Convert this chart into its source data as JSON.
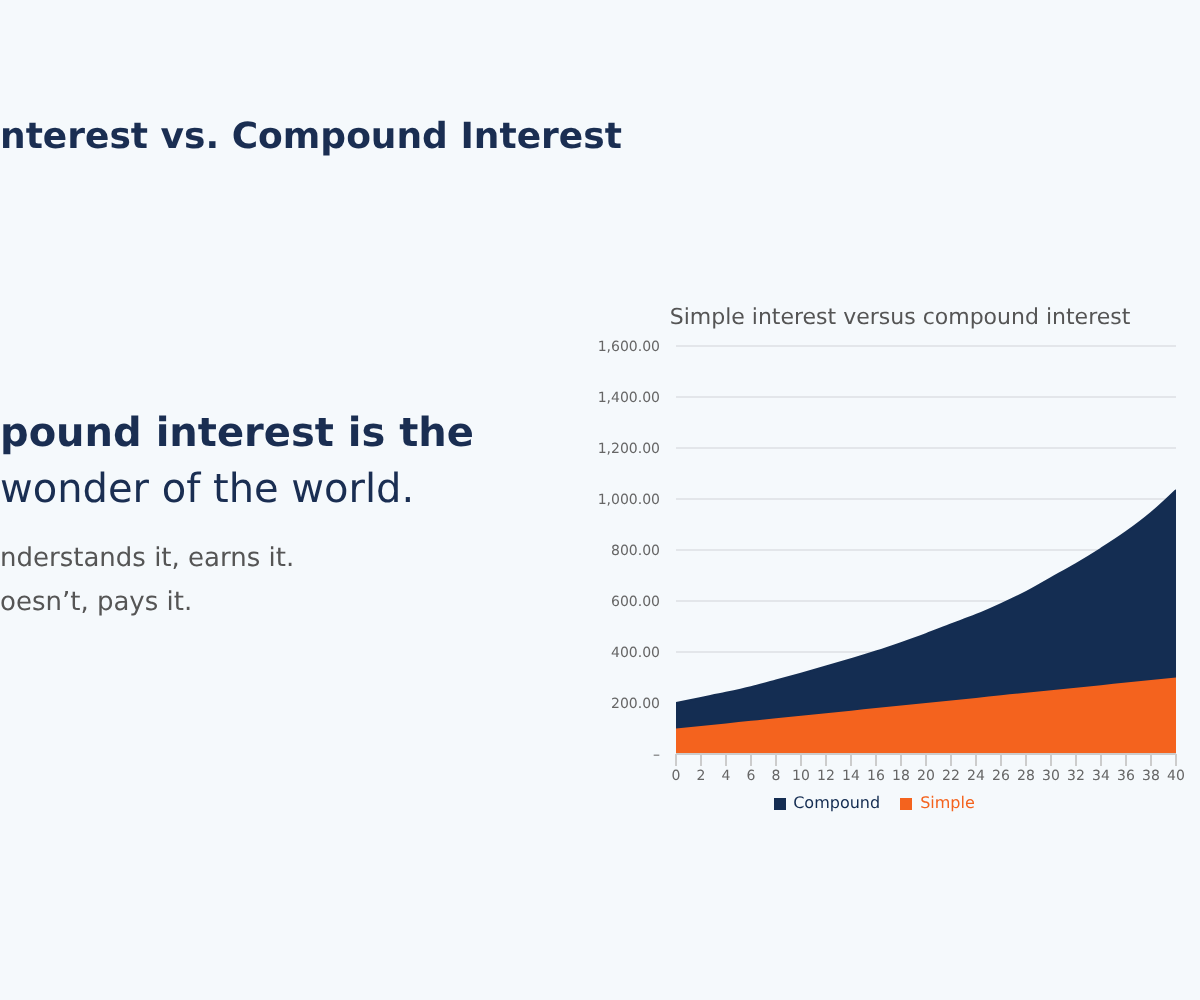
{
  "chart_data": {
    "type": "area",
    "title": "Simple interest versus compound interest",
    "annotations": [
      "nterest vs. Compound Interest",
      "pound interest is the",
      "wonder of the world.",
      "nderstands it, earns it.",
      "oesn’t, pays it."
    ],
    "x": [
      0,
      2,
      4,
      6,
      8,
      10,
      12,
      14,
      16,
      18,
      20,
      22,
      24,
      26,
      28,
      30,
      32,
      34,
      36,
      38,
      40
    ],
    "series": [
      {
        "name": "Simple",
        "color": "#f4631e",
        "values": [
          100,
          110,
          120,
          130,
          140,
          150,
          160,
          170,
          180,
          190,
          200,
          210,
          220,
          230,
          240,
          250,
          260,
          270,
          280,
          290,
          300
        ]
      },
      {
        "name": "Compound",
        "color": "#142d52",
        "values": [
          100,
          110,
          120,
          132,
          148,
          165,
          183,
          202,
          222,
          245,
          270,
          298,
          325,
          358,
          395,
          440,
          485,
          535,
          590,
          655,
          735
        ]
      }
    ],
    "stacked": true,
    "xlim": [
      0,
      40
    ],
    "xticks": [
      0,
      2,
      4,
      6,
      8,
      10,
      12,
      14,
      16,
      18,
      20,
      22,
      24,
      26,
      28,
      30,
      32,
      34,
      36,
      38,
      40
    ],
    "ylim": [
      0,
      1600
    ],
    "yticks": [
      {
        "value": 0,
        "label": "–"
      },
      {
        "value": 200,
        "label": "200.00"
      },
      {
        "value": 400,
        "label": "400.00"
      },
      {
        "value": 600,
        "label": "600.00"
      },
      {
        "value": 800,
        "label": "800.00"
      },
      {
        "value": 1000,
        "label": "1,000.00"
      },
      {
        "value": 1200,
        "label": "1,200.00"
      },
      {
        "value": 1400,
        "label": "1,400.00"
      },
      {
        "value": 1600,
        "label": "1,600.00"
      }
    ],
    "grid": "y",
    "legend": "bottom"
  }
}
